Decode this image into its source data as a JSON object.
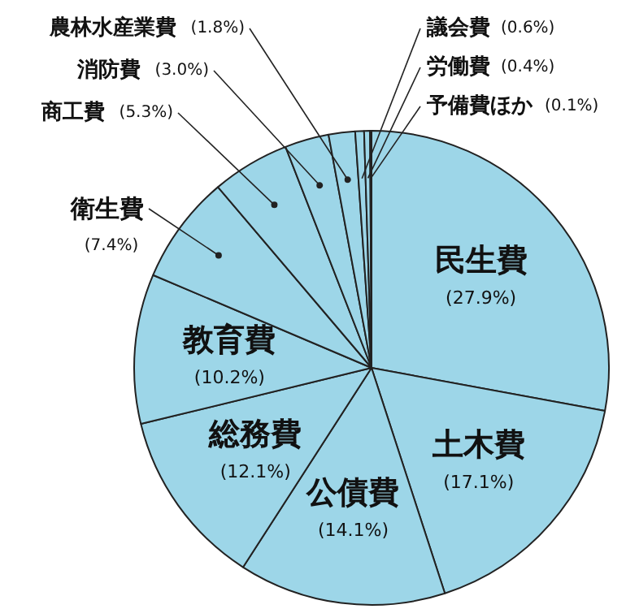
{
  "chart_data": {
    "type": "pie",
    "categories": [
      "民生費",
      "土木費",
      "公債費",
      "総務費",
      "教育費",
      "衛生費",
      "商工費",
      "消防費",
      "農林水産業費",
      "議会費",
      "労働費",
      "予備費ほか"
    ],
    "values": [
      27.9,
      17.1,
      14.1,
      12.1,
      10.2,
      7.4,
      5.3,
      3.0,
      1.8,
      0.6,
      0.4,
      0.1
    ],
    "value_labels": [
      "(27.9%)",
      "(17.1%)",
      "(14.1%)",
      "(12.1%)",
      "(10.2%)",
      "(7.4%)",
      "(5.3%)",
      "(3.0%)",
      "(1.8%)",
      "(0.6%)",
      "(0.4%)",
      "(0.1%)"
    ],
    "colors": [
      "#9dd6e8",
      "#9dd6e8",
      "#9dd6e8",
      "#9dd6e8",
      "#9dd6e8",
      "#9dd6e8",
      "#9dd6e8",
      "#9dd6e8",
      "#9dd6e8",
      "#9dd6e8",
      "#9dd6e8",
      "#9dd6e8"
    ]
  }
}
